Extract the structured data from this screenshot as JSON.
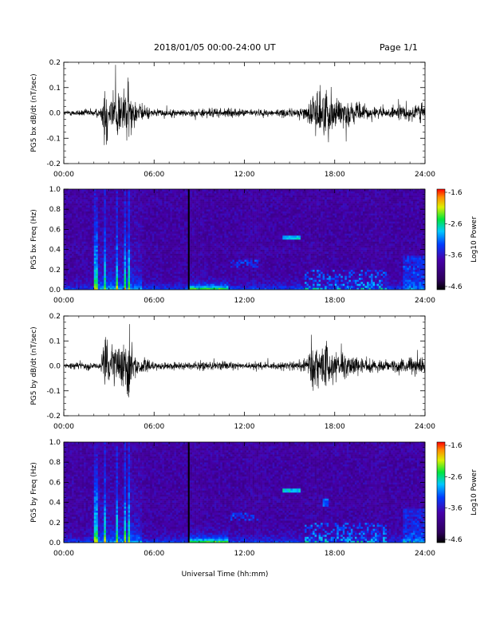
{
  "header": {
    "date_range": "2018/01/05  00:00-24:00 UT",
    "page": "Page 1/1"
  },
  "xaxis": {
    "label": "Universal Time (hh:mm)",
    "ticks": [
      "00:00",
      "06:00",
      "12:00",
      "18:00",
      "24:00"
    ]
  },
  "colorbar": {
    "label": "Log10 Power",
    "ticks": [
      "-1.6",
      "-2.6",
      "-3.6",
      "-4.6"
    ],
    "range": [
      -4.6,
      -1.6
    ]
  },
  "chart_data": [
    {
      "type": "line",
      "ylabel": "PG5 bx dB/dt (nT/sec)",
      "xlim": [
        0,
        24
      ],
      "ylim": [
        -0.2,
        0.2
      ],
      "yticks": [
        "0.2",
        "0.1",
        "0.0",
        "-0.1",
        "-0.2"
      ],
      "approx_envelope": {
        "x_hours": [
          0,
          2.5,
          2.7,
          3.0,
          3.5,
          4.0,
          4.3,
          4.6,
          5.0,
          6.0,
          8.0,
          10.0,
          12.0,
          14.0,
          15.5,
          16.2,
          16.5,
          17.0,
          17.5,
          18.5,
          20.0,
          21.5,
          22.5,
          23.5,
          24.0
        ],
        "amplitude": [
          0.01,
          0.02,
          0.2,
          0.08,
          0.12,
          0.1,
          0.14,
          0.06,
          0.04,
          0.015,
          0.015,
          0.02,
          0.015,
          0.015,
          0.02,
          0.03,
          0.08,
          0.1,
          0.1,
          0.06,
          0.03,
          0.02,
          0.03,
          0.05,
          0.03
        ]
      }
    },
    {
      "type": "heatmap",
      "ylabel": "PG5 bx Freq (Hz)",
      "xlim": [
        0,
        24
      ],
      "ylim": [
        0.0,
        1.0
      ],
      "yticks": [
        "1.0",
        "0.8",
        "0.6",
        "0.4",
        "0.2",
        "0.0"
      ],
      "zlabel": "Log10 Power",
      "zlim": [
        -4.6,
        -1.6
      ]
    },
    {
      "type": "line",
      "ylabel": "PG5 by dB/dt (nT/sec)",
      "xlim": [
        0,
        24
      ],
      "ylim": [
        -0.2,
        0.2
      ],
      "yticks": [
        "0.2",
        "0.1",
        "0.0",
        "-0.1",
        "-0.2"
      ],
      "approx_envelope": {
        "x_hours": [
          0,
          2.5,
          2.7,
          3.0,
          3.5,
          4.0,
          4.3,
          4.6,
          5.0,
          6.0,
          8.0,
          10.0,
          12.0,
          14.0,
          15.5,
          16.2,
          16.5,
          17.0,
          17.5,
          18.5,
          20.0,
          21.5,
          22.5,
          23.5,
          24.0
        ],
        "amplitude": [
          0.01,
          0.02,
          0.14,
          0.08,
          0.12,
          0.1,
          0.18,
          0.06,
          0.04,
          0.015,
          0.015,
          0.02,
          0.015,
          0.015,
          0.02,
          0.03,
          0.12,
          0.09,
          0.08,
          0.05,
          0.03,
          0.02,
          0.03,
          0.05,
          0.03
        ]
      }
    },
    {
      "type": "heatmap",
      "ylabel": "PG5 by Freq (Hz)",
      "xlim": [
        0,
        24
      ],
      "ylim": [
        0.0,
        1.0
      ],
      "yticks": [
        "1.0",
        "0.8",
        "0.6",
        "0.4",
        "0.2",
        "0.0"
      ],
      "zlabel": "Log10 Power",
      "zlim": [
        -4.6,
        -1.6
      ]
    }
  ]
}
